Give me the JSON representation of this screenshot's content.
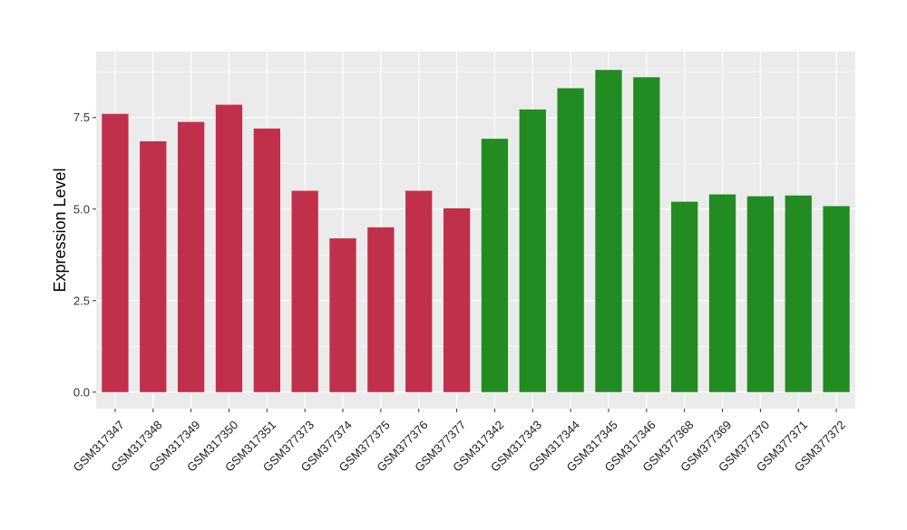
{
  "chart_data": {
    "type": "bar",
    "title": "",
    "xlabel": "",
    "ylabel": "Expression Level",
    "ylim": [
      -0.45,
      9.3
    ],
    "y_ticks": [
      0.0,
      2.5,
      5.0,
      7.5
    ],
    "y_tick_labels": [
      "0.0",
      "2.5",
      "5.0",
      "7.5"
    ],
    "grid": true,
    "legend": "none",
    "panel_background": "#ebebeb",
    "grid_color": "#ffffff",
    "group_colors": {
      "first": "#c1304a",
      "second": "#228b22"
    },
    "categories": [
      "GSM317347",
      "GSM317348",
      "GSM317349",
      "GSM317350",
      "GSM317351",
      "GSM377373",
      "GSM377374",
      "GSM377375",
      "GSM377376",
      "GSM377377",
      "GSM317342",
      "GSM317343",
      "GSM317344",
      "GSM317345",
      "GSM317346",
      "GSM377368",
      "GSM377369",
      "GSM377370",
      "GSM377371",
      "GSM377372"
    ],
    "values": [
      7.6,
      6.85,
      7.38,
      7.85,
      7.2,
      5.5,
      4.2,
      4.5,
      5.5,
      5.02,
      6.92,
      7.72,
      8.3,
      8.8,
      8.6,
      5.2,
      5.4,
      5.35,
      5.37,
      5.08
    ],
    "bar_colors": [
      "#c1304a",
      "#c1304a",
      "#c1304a",
      "#c1304a",
      "#c1304a",
      "#c1304a",
      "#c1304a",
      "#c1304a",
      "#c1304a",
      "#c1304a",
      "#228b22",
      "#228b22",
      "#228b22",
      "#228b22",
      "#228b22",
      "#228b22",
      "#228b22",
      "#228b22",
      "#228b22",
      "#228b22"
    ]
  }
}
